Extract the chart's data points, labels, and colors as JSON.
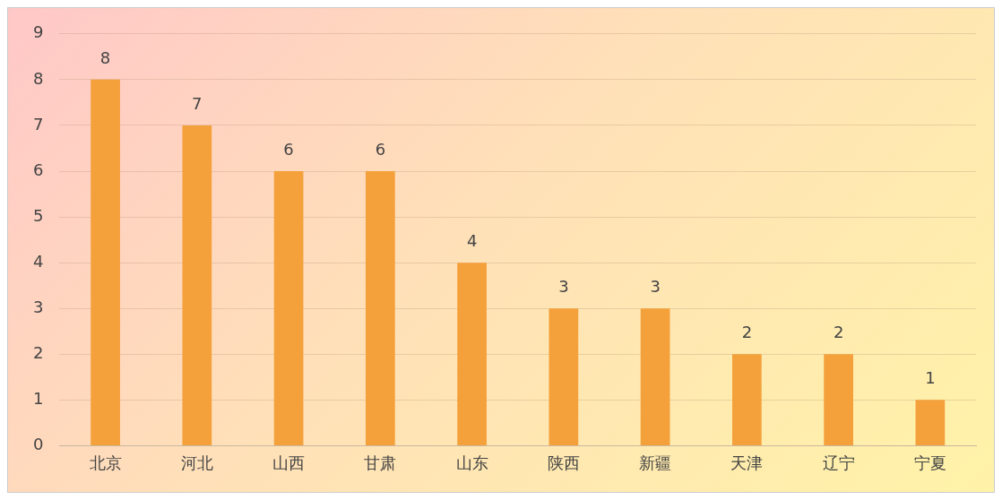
{
  "chart_data": {
    "type": "bar",
    "categories": [
      "北京",
      "河北",
      "山西",
      "甘肃",
      "山东",
      "陕西",
      "新疆",
      "天津",
      "辽宁",
      "宁夏"
    ],
    "values": [
      8,
      7,
      6,
      6,
      4,
      3,
      3,
      2,
      2,
      1
    ],
    "color": "#f4a13c",
    "ylim": [
      0,
      9
    ],
    "yticks": [
      0,
      1,
      2,
      3,
      4,
      5,
      6,
      7,
      8,
      9
    ],
    "grid": "y",
    "data_labels": true,
    "legend": false
  }
}
